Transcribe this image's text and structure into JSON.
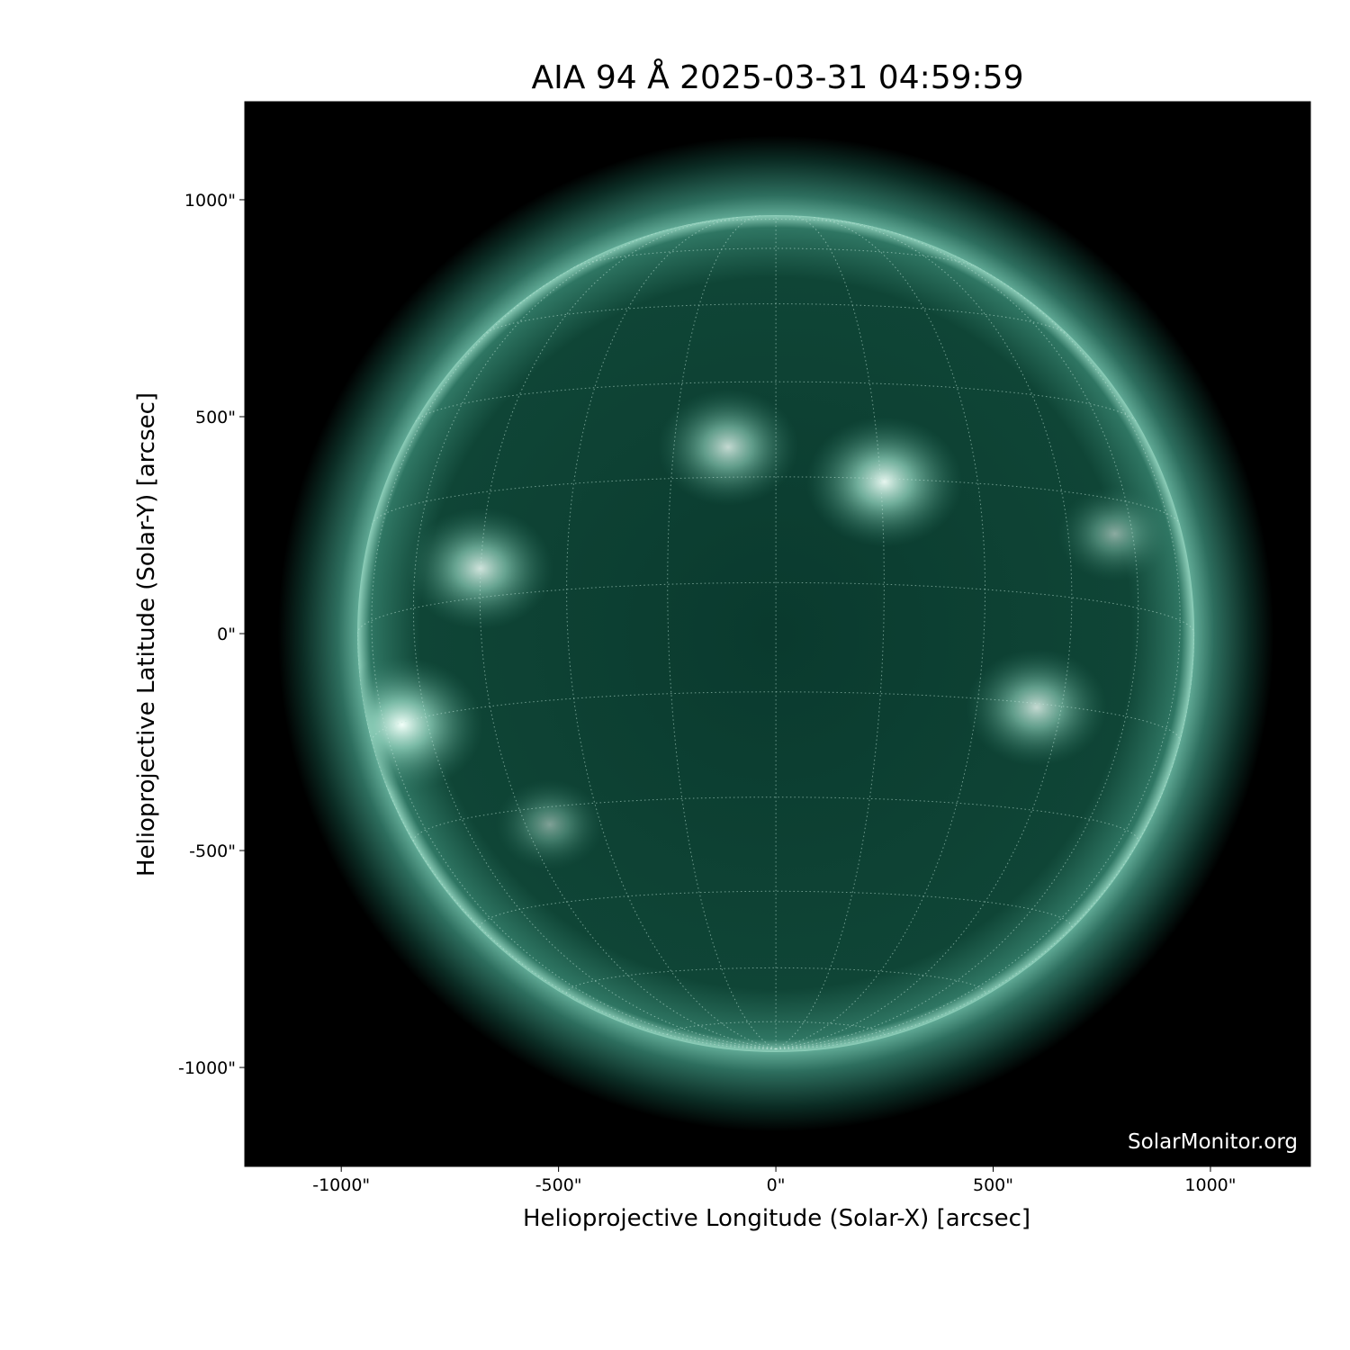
{
  "chart_data": {
    "type": "image",
    "title": "AIA 94 Å 2025-03-31 04:59:59",
    "xlabel": "Helioprojective Longitude (Solar-X) [arcsec]",
    "ylabel": "Helioprojective Latitude (Solar-Y) [arcsec]",
    "xlim": [
      -1222,
      1230
    ],
    "ylim": [
      -1228,
      1226
    ],
    "xticks": [
      -1000,
      -500,
      0,
      500,
      1000
    ],
    "xtick_labels": [
      "-1000\"",
      "-500\"",
      "0\"",
      "500\"",
      "1000\""
    ],
    "yticks": [
      1000,
      500,
      0,
      -500,
      -1000
    ],
    "ytick_labels": [
      "1000\"",
      "500\"",
      "0\"",
      "-500\"",
      "-1000\""
    ],
    "solar_radius_arcsec": 963,
    "grid": "heliographic, 15° spacing, dotted",
    "colormap": "sdoaia94",
    "colors": {
      "background": "#000000",
      "disk": "#0c3d31",
      "limb": "#7cc4ad",
      "flare": "#e8fff6"
    },
    "bright_regions_arcsec": [
      {
        "x": -860,
        "y": -210,
        "intensity": 1.0
      },
      {
        "x": 250,
        "y": 350,
        "intensity": 0.95
      },
      {
        "x": -680,
        "y": 150,
        "intensity": 0.85
      },
      {
        "x": -110,
        "y": 430,
        "intensity": 0.8
      },
      {
        "x": 600,
        "y": -170,
        "intensity": 0.8
      },
      {
        "x": -520,
        "y": -440,
        "intensity": 0.5
      },
      {
        "x": 780,
        "y": 230,
        "intensity": 0.55
      }
    ]
  },
  "watermark": "SolarMonitor.org"
}
